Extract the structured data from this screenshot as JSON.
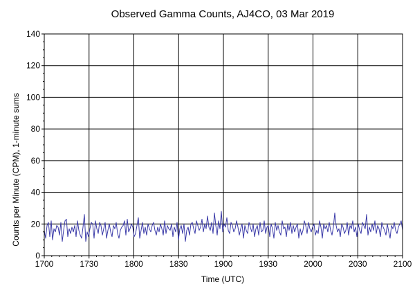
{
  "chart_data": {
    "type": "line",
    "title": "Observed Gamma Counts, AJ4CO, 03 Mar 2019",
    "xlabel": "Time (UTC)",
    "ylabel": "Counts per Minute (CPM), 1-minute sums",
    "xticks": [
      "1700",
      "1730",
      "1800",
      "1830",
      "1900",
      "1930",
      "2000",
      "2030",
      "2100"
    ],
    "yticks": [
      0,
      20,
      40,
      60,
      80,
      100,
      120,
      140
    ],
    "xlim_minutes": [
      0,
      240
    ],
    "ylim": [
      0,
      140
    ],
    "grid": true,
    "line_color": "#3a3aa8",
    "series": [
      {
        "values": [
          16,
          11,
          19,
          21,
          12,
          22,
          10,
          17,
          15,
          19,
          18,
          13,
          21,
          9,
          16,
          22,
          23,
          12,
          17,
          14,
          18,
          15,
          19,
          12,
          22,
          16,
          13,
          11,
          18,
          26,
          9,
          15,
          12,
          17,
          21,
          20,
          11,
          22,
          17,
          14,
          21,
          19,
          13,
          17,
          21,
          11,
          16,
          20,
          15,
          12,
          19,
          17,
          21,
          14,
          11,
          16,
          18,
          19,
          22,
          13,
          23,
          15,
          17,
          20,
          18,
          12,
          14,
          19,
          24,
          11,
          16,
          21,
          14,
          18,
          13,
          20,
          17,
          15,
          19,
          21,
          16,
          13,
          18,
          15,
          20,
          17,
          13,
          22,
          14,
          19,
          17,
          16,
          20,
          12,
          18,
          15,
          21,
          10,
          17,
          19,
          14,
          20,
          9,
          16,
          18,
          13,
          20,
          21,
          17,
          14,
          22,
          19,
          16,
          18,
          23,
          15,
          20,
          17,
          25,
          18,
          16,
          21,
          14,
          27,
          19,
          13,
          22,
          17,
          28,
          15,
          20,
          18,
          24,
          16,
          14,
          21,
          19,
          15,
          17,
          22,
          18,
          13,
          17,
          20,
          11,
          19,
          16,
          14,
          21,
          18,
          15,
          20,
          12,
          17,
          19,
          13,
          21,
          15,
          16,
          22,
          14,
          18,
          19,
          12,
          20,
          17,
          11,
          21,
          16,
          19,
          15,
          13,
          22,
          17,
          18,
          12,
          20,
          16,
          21,
          14,
          19,
          15,
          18,
          20,
          11,
          17,
          13,
          16,
          22,
          19,
          14,
          21,
          17,
          15,
          18,
          20,
          13,
          16,
          14,
          22,
          18,
          11,
          20,
          17,
          19,
          15,
          21,
          16,
          13,
          18,
          27,
          19,
          15,
          17,
          12,
          20,
          18,
          14,
          16,
          21,
          13,
          19,
          17,
          22,
          15,
          18,
          12,
          20,
          16,
          14,
          21,
          19,
          17,
          26,
          13,
          18,
          15,
          20,
          16,
          22,
          14,
          19,
          17,
          12,
          21,
          18,
          16,
          13,
          20,
          15,
          11,
          19,
          17,
          21,
          16,
          14,
          18,
          20,
          22,
          16
        ]
      }
    ]
  }
}
